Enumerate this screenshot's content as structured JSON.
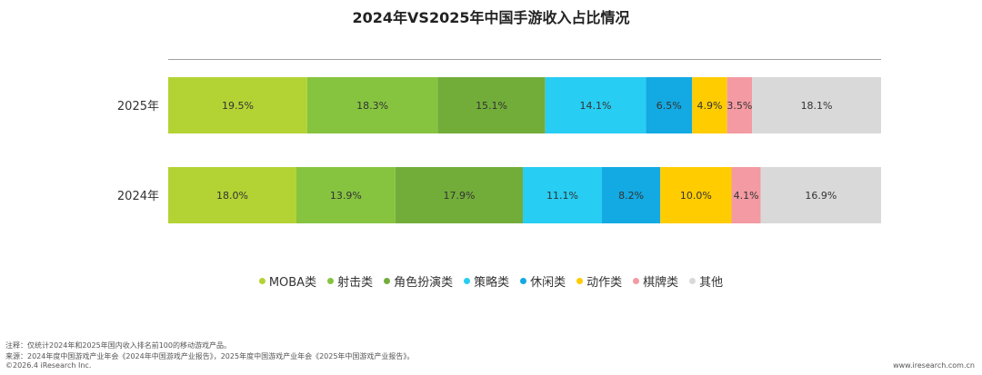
{
  "title": "2024年VS2025年中国手游收入占比情况",
  "chart_data": {
    "type": "bar",
    "orientation": "horizontal",
    "stacked": true,
    "normalized": true,
    "categories": [
      "2025年",
      "2024年"
    ],
    "series": [
      {
        "name": "MOBA类",
        "color": "#b3d334",
        "values": [
          19.5,
          18.0
        ]
      },
      {
        "name": "射击类",
        "color": "#86c440",
        "values": [
          18.3,
          13.9
        ]
      },
      {
        "name": "角色扮演类",
        "color": "#72ad3a",
        "values": [
          15.1,
          17.9
        ]
      },
      {
        "name": "策略类",
        "color": "#27cdf2",
        "values": [
          14.1,
          11.1
        ]
      },
      {
        "name": "休闲类",
        "color": "#13a9e2",
        "values": [
          6.5,
          8.2
        ]
      },
      {
        "name": "动作类",
        "color": "#ffcc00",
        "values": [
          4.9,
          10.0
        ]
      },
      {
        "name": "棋牌类",
        "color": "#f39aa2",
        "values": [
          3.5,
          4.1
        ]
      },
      {
        "name": "其他",
        "color": "#d9d9d9",
        "values": [
          18.1,
          16.9
        ]
      }
    ],
    "value_suffix": "%",
    "legend_position": "bottom"
  },
  "footnotes": {
    "note": "注释：仅统计2024年和2025年国内收入排名前100的移动游戏产品。",
    "source": "来源：2024年度中国游戏产业年会《2024年中国游戏产业报告》，2025年度中国游戏产业年会《2025年中国游戏产业报告》。",
    "copyright": "©2026.4 iResearch Inc.",
    "website": "www.iresearch.com.cn"
  }
}
